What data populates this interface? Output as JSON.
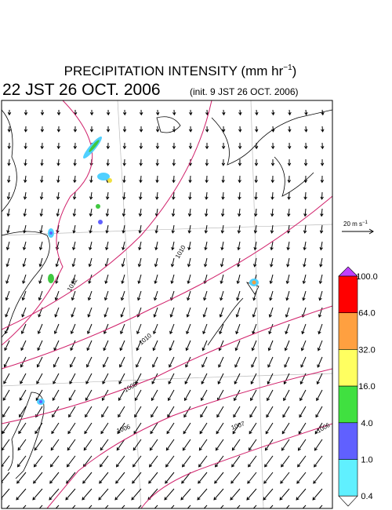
{
  "header": {
    "title": {
      "main": "PRECIPITATION INTENSITY (mm hr",
      "superscript": "−1",
      "end": ")"
    },
    "valid_time": "22 JST 26 OCT. 2006",
    "init_time": "(init. 9 JST 26 OCT. 2006)"
  },
  "wind_scale": {
    "main": "20 m s",
    "superscript": "−1"
  },
  "legend": {
    "labels": [
      "100.0",
      "64.0",
      "32.0",
      "16.0",
      "4.0",
      "1.0",
      "0.4"
    ]
  },
  "isobars": {
    "labels": [
      "1012",
      "1010",
      "1010",
      "1008",
      "1006",
      "1007",
      "1006"
    ]
  }
}
